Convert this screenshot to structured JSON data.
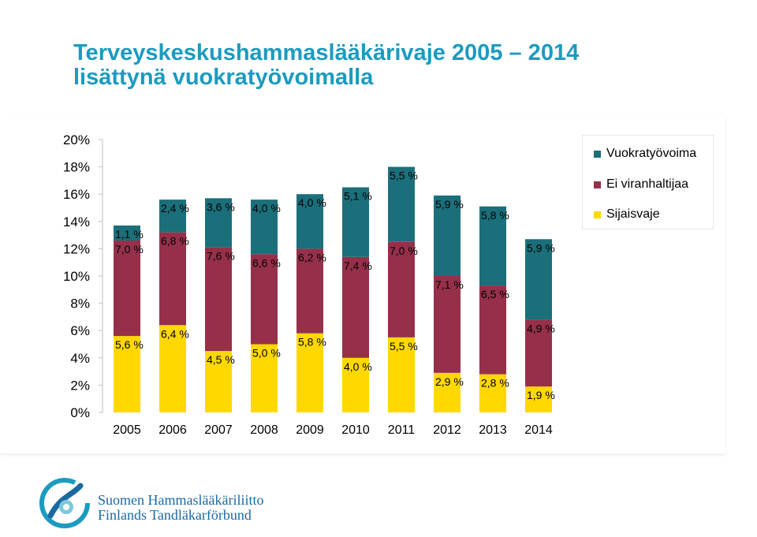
{
  "title": {
    "line1": "Terveyskeskushammaslääkärivaje 2005 – 2014",
    "line2": "lisättynä vuokratyövoimalla"
  },
  "legend": [
    {
      "label": "Vuokratyövoima",
      "color": "#1b6f7a"
    },
    {
      "label": "Ei viranhaltijaa",
      "color": "#96304a"
    },
    {
      "label": "Sijaisvaje",
      "color": "#ffd800"
    }
  ],
  "chart_data": {
    "type": "bar",
    "stacked": true,
    "categories": [
      "2005",
      "2006",
      "2007",
      "2008",
      "2009",
      "2010",
      "2011",
      "2012",
      "2013",
      "2014"
    ],
    "ylim": [
      0,
      20
    ],
    "yticks": [
      "0%",
      "2%",
      "4%",
      "6%",
      "8%",
      "10%",
      "12%",
      "14%",
      "16%",
      "18%",
      "20%"
    ],
    "grid": false,
    "legend_position": "top-right",
    "series": [
      {
        "name": "Sijaisvaje",
        "color": "#ffd800",
        "values": [
          5.6,
          6.4,
          4.5,
          5.0,
          5.8,
          4.0,
          5.5,
          2.9,
          2.8,
          1.9
        ],
        "labels": [
          "5,6 %",
          "6,4 %",
          "4,5 %",
          "5,0 %",
          "5,8 %",
          "4,0 %",
          "5,5 %",
          "2,9 %",
          "2,8 %",
          "1,9 %"
        ]
      },
      {
        "name": "Ei viranhaltijaa",
        "color": "#96304a",
        "values": [
          7.0,
          6.8,
          7.6,
          6.6,
          6.2,
          7.4,
          7.0,
          7.1,
          6.5,
          4.9
        ],
        "labels": [
          "7,0 %",
          "6,8 %",
          "7,6 %",
          "6,6 %",
          "6,2 %",
          "7,4 %",
          "7,0 %",
          "7,1 %",
          "6,5 %",
          "4,9 %"
        ]
      },
      {
        "name": "Vuokratyövoima",
        "color": "#1b6f7a",
        "values": [
          1.1,
          2.4,
          3.6,
          4.0,
          4.0,
          5.1,
          5.5,
          5.9,
          5.8,
          5.9
        ],
        "labels": [
          "1,1 %",
          "2,4 %",
          "3,6 %",
          "4,0 %",
          "4,0 %",
          "5,1 %",
          "5,5 %",
          "5,9 %",
          "5,8 %",
          "5,9 %"
        ]
      }
    ]
  },
  "organization": {
    "name_fi": "Suomen Hammaslääkäriliitto",
    "name_sv": "Finlands Tandläkarförbund"
  }
}
